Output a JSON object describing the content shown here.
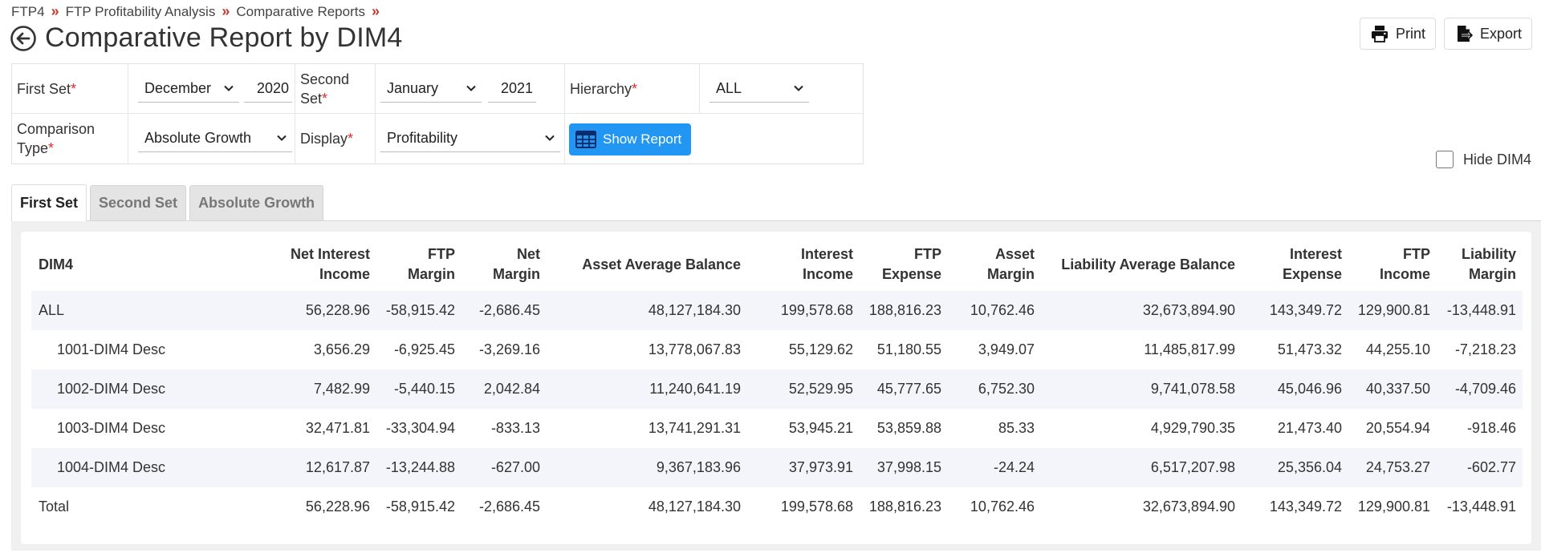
{
  "breadcrumb": [
    "FTP4",
    "FTP Profitability Analysis",
    "Comparative Reports"
  ],
  "page_title": "Comparative Report by DIM4",
  "actions": {
    "print": "Print",
    "export": "Export"
  },
  "filters": {
    "first_set_label": "First Set",
    "first_set_month": "December",
    "first_set_year": "2020",
    "second_set_label": "Second Set",
    "second_set_month": "January",
    "second_set_year": "2021",
    "hierarchy_label": "Hierarchy",
    "hierarchy_value": "ALL",
    "comparison_type_label": "Comparison Type",
    "comparison_type_value": "Absolute Growth",
    "display_label": "Display",
    "display_value": "Profitability",
    "show_report": "Show Report",
    "required_mark": "*"
  },
  "hide_dim_label": "Hide DIM4",
  "tabs": [
    "First Set",
    "Second Set",
    "Absolute Growth"
  ],
  "table": {
    "headers": [
      "DIM4",
      "Net Interest Income",
      "FTP Margin",
      "Net Margin",
      "Asset Average Balance",
      "Interest Income",
      "FTP Expense",
      "Asset Margin",
      "Liability Average Balance",
      "Interest Expense",
      "FTP Income",
      "Liability Margin"
    ],
    "rows": [
      [
        "ALL",
        "56,228.96",
        "-58,915.42",
        "-2,686.45",
        "48,127,184.30",
        "199,578.68",
        "188,816.23",
        "10,762.46",
        "32,673,894.90",
        "143,349.72",
        "129,900.81",
        "-13,448.91"
      ],
      [
        "1001-DIM4 Desc",
        "3,656.29",
        "-6,925.45",
        "-3,269.16",
        "13,778,067.83",
        "55,129.62",
        "51,180.55",
        "3,949.07",
        "11,485,817.99",
        "51,473.32",
        "44,255.10",
        "-7,218.23"
      ],
      [
        "1002-DIM4 Desc",
        "7,482.99",
        "-5,440.15",
        "2,042.84",
        "11,240,641.19",
        "52,529.95",
        "45,777.65",
        "6,752.30",
        "9,741,078.58",
        "45,046.96",
        "40,337.50",
        "-4,709.46"
      ],
      [
        "1003-DIM4 Desc",
        "32,471.81",
        "-33,304.94",
        "-833.13",
        "13,741,291.31",
        "53,945.21",
        "53,859.88",
        "85.33",
        "4,929,790.35",
        "21,473.40",
        "20,554.94",
        "-918.46"
      ],
      [
        "1004-DIM4 Desc",
        "12,617.87",
        "-13,244.88",
        "-627.00",
        "9,367,183.96",
        "37,973.91",
        "37,998.15",
        "-24.24",
        "6,517,207.98",
        "25,356.04",
        "24,753.27",
        "-602.77"
      ],
      [
        "Total",
        "56,228.96",
        "-58,915.42",
        "-2,686.45",
        "48,127,184.30",
        "199,578.68",
        "188,816.23",
        "10,762.46",
        "32,673,894.90",
        "143,349.72",
        "129,900.81",
        "-13,448.91"
      ]
    ]
  },
  "colors": {
    "accent": "#2196f3",
    "required": "#d9302c",
    "breadcrumb_sep": "#c0392b"
  }
}
